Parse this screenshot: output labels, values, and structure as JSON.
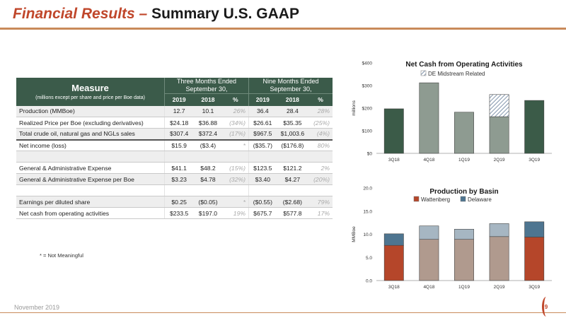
{
  "header": {
    "title_part1": "Financial Results –",
    "title_part2": "Summary U.S. GAAP"
  },
  "table": {
    "measure_title": "Measure",
    "measure_subtitle": "(millions except per share and price per Boe data)",
    "group1": "Three Months Ended September 30,",
    "group2": "Nine Months Ended September 30,",
    "subcols": [
      "2019",
      "2018",
      "%",
      "2019",
      "2018",
      "%"
    ],
    "rows": [
      {
        "label": "Production (MMBoe)",
        "v": [
          "12.7",
          "10.1",
          "26%",
          "36.4",
          "28.4",
          "28%"
        ]
      },
      {
        "label": "Realized Price per Boe (excluding derivatives)",
        "v": [
          "$24.18",
          "$36.88",
          "(34%)",
          "$26.61",
          "$35.35",
          "(25%)"
        ]
      },
      {
        "label": "Total crude oil, natural gas and NGLs sales",
        "v": [
          "$307.4",
          "$372.4",
          "(17%)",
          "$967.5",
          "$1,003.6",
          "(4%)"
        ]
      },
      {
        "label": "Net income (loss)",
        "v": [
          "$15.9",
          "($3.4)",
          "*",
          "($35.7)",
          "($176.8)",
          "80%"
        ]
      },
      {
        "label": "",
        "v": [
          "",
          "",
          "",
          "",
          "",
          ""
        ]
      },
      {
        "label": "General & Administrative Expense",
        "v": [
          "$41.1",
          "$48.2",
          "(15%)",
          "$123.5",
          "$121.2",
          "2%"
        ]
      },
      {
        "label": "General & Administrative Expense per Boe",
        "v": [
          "$3.23",
          "$4.78",
          "(32%)",
          "$3.40",
          "$4.27",
          "(20%)"
        ]
      },
      {
        "label": "",
        "v": [
          "",
          "",
          "",
          "",
          "",
          ""
        ]
      },
      {
        "label": "Earnings per diluted share",
        "v": [
          "$0.25",
          "($0.05)",
          "*",
          "($0.55)",
          "($2.68)",
          "79%"
        ]
      },
      {
        "label": "Net cash from operating activities",
        "v": [
          "$233.5",
          "$197.0",
          "19%",
          "$675.7",
          "$577.8",
          "17%"
        ]
      }
    ]
  },
  "footnote": "* = Not Meaningful",
  "footer": {
    "date": "November 2019",
    "page": "9"
  },
  "colors": {
    "accent": "#c0472b",
    "table_header": "#3b5b4a",
    "bar_dark_green": "#3b5b48",
    "bar_gray_green": "#8e9b91",
    "wattenberg": "#b5462a",
    "wattenberg_light": "#b09a8e",
    "delaware": "#4e7590",
    "delaware_light": "#a6b6c2"
  },
  "chart_data": [
    {
      "type": "bar",
      "title": "Net Cash from Operating Activities",
      "ylabel": "millions",
      "categories": [
        "3Q18",
        "4Q18",
        "1Q19",
        "2Q19",
        "3Q19"
      ],
      "ylim": [
        0,
        400
      ],
      "yticks": [
        "$0",
        "$100",
        "$200",
        "$300",
        "$400"
      ],
      "ytick_values": [
        0,
        100,
        200,
        300,
        400
      ],
      "legend": [
        "DE Midstream Related"
      ],
      "legend_position": "top",
      "series": [
        {
          "values": [
            197,
            312,
            182,
            162,
            234
          ],
          "colors": [
            "#3b5b48",
            "#8e9b91",
            "#8e9b91",
            "#8e9b91",
            "#3b5b48"
          ]
        },
        {
          "name": "DE Midstream Related",
          "values": [
            0,
            0,
            0,
            98,
            0
          ],
          "pattern": "hatch"
        }
      ]
    },
    {
      "type": "bar",
      "stacked": true,
      "title": "Production by Basin",
      "ylabel": "MMBoe",
      "categories": [
        "3Q18",
        "4Q18",
        "1Q19",
        "2Q19",
        "3Q19"
      ],
      "ylim": [
        0,
        20
      ],
      "yticks": [
        "0.0",
        "5.0",
        "10.0",
        "15.0",
        "20.0"
      ],
      "ytick_values": [
        0,
        5,
        10,
        15,
        20
      ],
      "legend_position": "top",
      "series": [
        {
          "name": "Wattenberg",
          "values": [
            7.6,
            8.9,
            8.9,
            9.5,
            9.4
          ],
          "colors": [
            "#b5462a",
            "#b09a8e",
            "#b09a8e",
            "#b09a8e",
            "#b5462a"
          ]
        },
        {
          "name": "Delaware",
          "values": [
            2.5,
            2.9,
            2.2,
            2.8,
            3.3
          ],
          "colors": [
            "#4e7590",
            "#a6b6c2",
            "#a6b6c2",
            "#a6b6c2",
            "#4e7590"
          ]
        }
      ]
    }
  ]
}
